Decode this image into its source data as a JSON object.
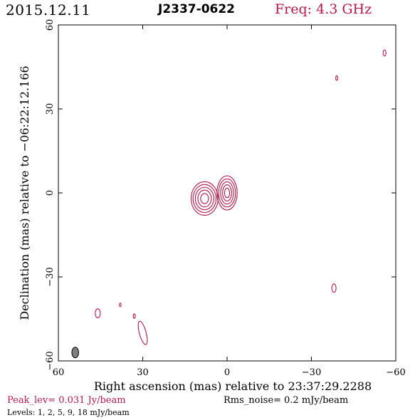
{
  "header": {
    "date": "2015.12.11",
    "source": "J2337-0622",
    "frequency": "Freq: 4.3 GHz"
  },
  "footer": {
    "peak": "Peak_lev=  0.031 Jy/beam",
    "rms": "Rms_noise=  0.2 mJy/beam",
    "levels": "Levels:   1,   2,   5,   9,  18 mJy/beam"
  },
  "colors": {
    "contour": "#b0194a",
    "beam_fill": "#808080",
    "frame": "#000000"
  },
  "chart_data": {
    "type": "contour",
    "xlabel": "Right ascension (mas) relative to 23:37:29.2288",
    "ylabel": "Declination (mas) relative to −06:22:12.166",
    "xlim": [
      60,
      -60
    ],
    "ylim": [
      -60,
      60
    ],
    "xticks": [
      60,
      30,
      0,
      -30,
      -60
    ],
    "xtick_labels": [
      "60",
      "30",
      "0",
      "−30",
      "−60"
    ],
    "yticks": [
      60,
      30,
      0,
      -30,
      -60
    ],
    "ytick_labels": [
      "60",
      "30",
      "0",
      "−30",
      "−60"
    ],
    "contour_levels_mJy": [
      1,
      2,
      5,
      9,
      18
    ],
    "components": [
      {
        "x": 8.0,
        "y": -2.0,
        "radii": [
          [
            4.8,
            6.0
          ],
          [
            4.1,
            5.0
          ],
          [
            3.3,
            4.0
          ],
          [
            2.4,
            3.0
          ],
          [
            1.4,
            1.8
          ]
        ]
      },
      {
        "x": 0.0,
        "y": 0.0,
        "radii": [
          [
            3.6,
            6.1
          ],
          [
            3.0,
            5.0
          ],
          [
            2.3,
            4.0
          ],
          [
            1.6,
            2.9
          ],
          [
            0.9,
            1.7
          ]
        ]
      },
      {
        "x": 30.0,
        "y": -50.0,
        "radii": [
          [
            1.2,
            4.3
          ]
        ],
        "angle": -15
      },
      {
        "x": 46.0,
        "y": -43.0,
        "radii": [
          [
            0.9,
            1.6
          ]
        ]
      },
      {
        "x": 33.0,
        "y": -44.0,
        "radii": [
          [
            0.35,
            0.8
          ]
        ]
      },
      {
        "x": 38.0,
        "y": -40.0,
        "radii": [
          [
            0.3,
            0.6
          ]
        ]
      },
      {
        "x": -38.0,
        "y": -34.0,
        "radii": [
          [
            0.75,
            1.5
          ]
        ]
      },
      {
        "x": -39.0,
        "y": 41.0,
        "radii": [
          [
            0.35,
            0.8
          ]
        ]
      },
      {
        "x": -56.0,
        "y": 50.0,
        "radii": [
          [
            0.5,
            1.1
          ]
        ]
      }
    ],
    "beam": {
      "x": 54.0,
      "y": -57.0,
      "radii": [
        1.2,
        1.9
      ]
    }
  }
}
